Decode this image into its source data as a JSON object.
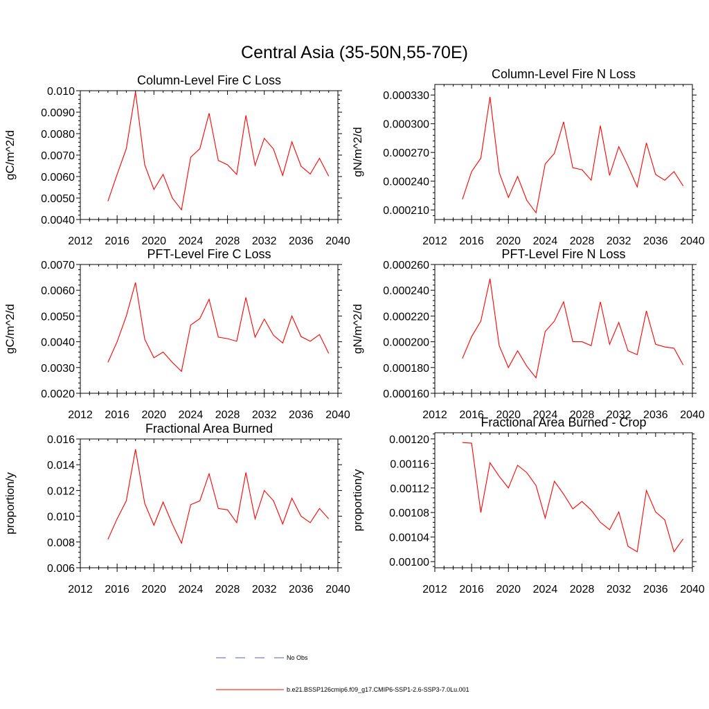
{
  "figure": {
    "title": "Central Asia (35-50N,55-70E)"
  },
  "legend": {
    "items": [
      {
        "label": "No Obs",
        "color": "#5a5acf",
        "style": "dashed"
      },
      {
        "label": "b.e21.BSSP126cmip6.f09_g17.CMIP6-SSP1-2.6-SSP3-7.0Lu.001",
        "color": "#ff0000",
        "style": "solid"
      }
    ]
  },
  "colors": {
    "series": "#ff0000",
    "obs": "#5a5acf",
    "axes": "#000000"
  },
  "chart_data": [
    {
      "type": "line",
      "title": "Column-Level Fire C Loss",
      "ylabel": "gC/m^2/d",
      "xlim": [
        2012,
        2040
      ],
      "ylim": [
        0.004,
        0.01
      ],
      "xticks": [
        2012,
        2016,
        2020,
        2024,
        2028,
        2032,
        2036,
        2040
      ],
      "yticks": [
        "0.0040",
        "0.0050",
        "0.0060",
        "0.0070",
        "0.0080",
        "0.0090",
        "0.010"
      ],
      "x": [
        2015,
        2016,
        2017,
        2018,
        2019,
        2020,
        2021,
        2022,
        2023,
        2024,
        2025,
        2026,
        2027,
        2028,
        2029,
        2030,
        2031,
        2032,
        2033,
        2034,
        2035,
        2036,
        2037,
        2038,
        2039
      ],
      "series": [
        {
          "values": [
            0.00485,
            0.0061,
            0.0073,
            0.00995,
            0.00655,
            0.0054,
            0.0061,
            0.005,
            0.00445,
            0.0069,
            0.0073,
            0.00895,
            0.00675,
            0.00655,
            0.0061,
            0.00885,
            0.00652,
            0.00778,
            0.00728,
            0.00605,
            0.00762,
            0.00648,
            0.00612,
            0.00685,
            0.00602
          ]
        }
      ]
    },
    {
      "type": "line",
      "title": "Column-Level Fire N Loss",
      "ylabel": "gN/m^2/d",
      "xlim": [
        2012,
        2040
      ],
      "ylim": [
        0.0002,
        0.000341
      ],
      "xticks": [
        2012,
        2016,
        2020,
        2024,
        2028,
        2032,
        2036,
        2040
      ],
      "yticks": [
        "0.000210",
        "0.000240",
        "0.000270",
        "0.000300",
        "0.000330"
      ],
      "x": [
        2015,
        2016,
        2017,
        2018,
        2019,
        2020,
        2021,
        2022,
        2023,
        2024,
        2025,
        2026,
        2027,
        2028,
        2029,
        2030,
        2031,
        2032,
        2033,
        2034,
        2035,
        2036,
        2037,
        2038,
        2039
      ],
      "series": [
        {
          "values": [
            0.000221,
            0.00025,
            0.000264,
            0.000328,
            0.000249,
            0.000223,
            0.000245,
            0.00022,
            0.000207,
            0.000258,
            0.000269,
            0.000302,
            0.000254,
            0.000252,
            0.000241,
            0.000298,
            0.000246,
            0.000276,
            0.000256,
            0.000234,
            0.00028,
            0.000247,
            0.000241,
            0.00025,
            0.000235
          ]
        }
      ]
    },
    {
      "type": "line",
      "title": "PFT-Level Fire C Loss",
      "ylabel": "gC/m^2/d",
      "xlim": [
        2012,
        2040
      ],
      "ylim": [
        0.002,
        0.007
      ],
      "xticks": [
        2012,
        2016,
        2020,
        2024,
        2028,
        2032,
        2036,
        2040
      ],
      "yticks": [
        "0.0020",
        "0.0030",
        "0.0040",
        "0.0050",
        "0.0060",
        "0.0070"
      ],
      "x": [
        2015,
        2016,
        2017,
        2018,
        2019,
        2020,
        2021,
        2022,
        2023,
        2024,
        2025,
        2026,
        2027,
        2028,
        2029,
        2030,
        2031,
        2032,
        2033,
        2034,
        2035,
        2036,
        2037,
        2038,
        2039
      ],
      "series": [
        {
          "values": [
            0.0032,
            0.004,
            0.005,
            0.0063,
            0.0041,
            0.00338,
            0.0036,
            0.0032,
            0.00285,
            0.00465,
            0.0049,
            0.00565,
            0.00418,
            0.00412,
            0.00402,
            0.00572,
            0.00418,
            0.00488,
            0.00425,
            0.00395,
            0.005,
            0.0042,
            0.00402,
            0.00428,
            0.00355
          ]
        }
      ]
    },
    {
      "type": "line",
      "title": "PFT-Level Fire N Loss",
      "ylabel": "gN/m^2/d",
      "xlim": [
        2012,
        2040
      ],
      "ylim": [
        0.00016,
        0.00026
      ],
      "xticks": [
        2012,
        2016,
        2020,
        2024,
        2028,
        2032,
        2036,
        2040
      ],
      "yticks": [
        "0.000160",
        "0.000180",
        "0.000200",
        "0.000220",
        "0.000240",
        "0.000260"
      ],
      "x": [
        2015,
        2016,
        2017,
        2018,
        2019,
        2020,
        2021,
        2022,
        2023,
        2024,
        2025,
        2026,
        2027,
        2028,
        2029,
        2030,
        2031,
        2032,
        2033,
        2034,
        2035,
        2036,
        2037,
        2038,
        2039
      ],
      "series": [
        {
          "values": [
            0.000187,
            0.000204,
            0.000216,
            0.000249,
            0.000197,
            0.00018,
            0.000193,
            0.000181,
            0.000172,
            0.000208,
            0.000216,
            0.000231,
            0.0002,
            0.0002,
            0.000197,
            0.000231,
            0.000198,
            0.000215,
            0.000193,
            0.00019,
            0.000224,
            0.000198,
            0.000196,
            0.000195,
            0.000182
          ]
        }
      ]
    },
    {
      "type": "line",
      "title": "Fractional Area Burned",
      "ylabel": "proportion/y",
      "xlim": [
        2012,
        2040
      ],
      "ylim": [
        0.006,
        0.016
      ],
      "xticks": [
        2012,
        2016,
        2020,
        2024,
        2028,
        2032,
        2036,
        2040
      ],
      "yticks": [
        "0.006",
        "0.008",
        "0.010",
        "0.012",
        "0.014",
        "0.016"
      ],
      "x": [
        2015,
        2016,
        2017,
        2018,
        2019,
        2020,
        2021,
        2022,
        2023,
        2024,
        2025,
        2026,
        2027,
        2028,
        2029,
        2030,
        2031,
        2032,
        2033,
        2034,
        2035,
        2036,
        2037,
        2038,
        2039
      ],
      "series": [
        {
          "values": [
            0.0082,
            0.0098,
            0.0112,
            0.0152,
            0.011,
            0.0093,
            0.0111,
            0.0094,
            0.0079,
            0.0109,
            0.0112,
            0.0133,
            0.0106,
            0.0105,
            0.0095,
            0.0134,
            0.0098,
            0.012,
            0.0112,
            0.0094,
            0.0114,
            0.01,
            0.0095,
            0.0106,
            0.0098
          ]
        }
      ]
    },
    {
      "type": "line",
      "title": "Fractional Area Burned - Crop",
      "ylabel": "proportion/y",
      "xlim": [
        2012,
        2040
      ],
      "ylim": [
        0.00099,
        0.00121
      ],
      "xticks": [
        2012,
        2016,
        2020,
        2024,
        2028,
        2032,
        2036,
        2040
      ],
      "yticks": [
        "0.00100",
        "0.00104",
        "0.00108",
        "0.00112",
        "0.00116",
        "0.00120"
      ],
      "x": [
        2015,
        2016,
        2017,
        2018,
        2019,
        2020,
        2021,
        2022,
        2023,
        2024,
        2025,
        2026,
        2027,
        2028,
        2029,
        2030,
        2031,
        2032,
        2033,
        2034,
        2035,
        2036,
        2037,
        2038,
        2039
      ],
      "series": [
        {
          "values": [
            0.001194,
            0.001193,
            0.00108,
            0.001161,
            0.001139,
            0.00112,
            0.001157,
            0.001145,
            0.001124,
            0.001071,
            0.001131,
            0.00111,
            0.001086,
            0.001098,
            0.001084,
            0.001064,
            0.001052,
            0.001081,
            0.001025,
            0.001016,
            0.001116,
            0.001081,
            0.001068,
            0.001016,
            0.001037
          ]
        }
      ]
    }
  ]
}
